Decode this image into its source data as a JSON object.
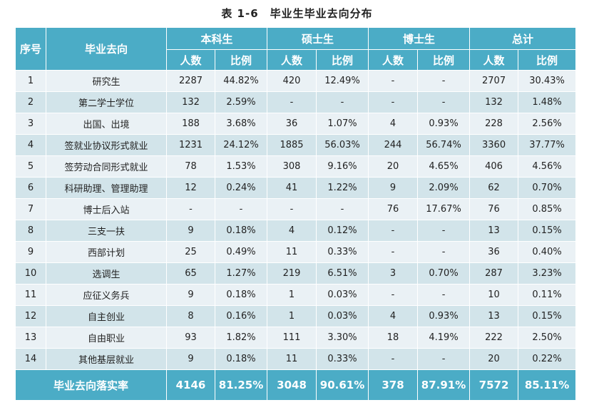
{
  "title": "表 1-6　毕业生毕业去向分布",
  "headers": {
    "index": "序号",
    "destination": "毕业去向",
    "groups": [
      "本科生",
      "硕士生",
      "博士生",
      "总计"
    ],
    "count": "人数",
    "ratio": "比例"
  },
  "rows": [
    [
      "1",
      "研究生",
      "2287",
      "44.82%",
      "420",
      "12.49%",
      "-",
      "-",
      "2707",
      "30.43%"
    ],
    [
      "2",
      "第二学士学位",
      "132",
      "2.59%",
      "-",
      "-",
      "-",
      "-",
      "132",
      "1.48%"
    ],
    [
      "3",
      "出国、出境",
      "188",
      "3.68%",
      "36",
      "1.07%",
      "4",
      "0.93%",
      "228",
      "2.56%"
    ],
    [
      "4",
      "签就业协议形式就业",
      "1231",
      "24.12%",
      "1885",
      "56.03%",
      "244",
      "56.74%",
      "3360",
      "37.77%"
    ],
    [
      "5",
      "签劳动合同形式就业",
      "78",
      "1.53%",
      "308",
      "9.16%",
      "20",
      "4.65%",
      "406",
      "4.56%"
    ],
    [
      "6",
      "科研助理、管理助理",
      "12",
      "0.24%",
      "41",
      "1.22%",
      "9",
      "2.09%",
      "62",
      "0.70%"
    ],
    [
      "7",
      "博士后入站",
      "-",
      "-",
      "-",
      "-",
      "76",
      "17.67%",
      "76",
      "0.85%"
    ],
    [
      "8",
      "三支一扶",
      "9",
      "0.18%",
      "4",
      "0.12%",
      "-",
      "-",
      "13",
      "0.15%"
    ],
    [
      "9",
      "西部计划",
      "25",
      "0.49%",
      "11",
      "0.33%",
      "-",
      "-",
      "36",
      "0.40%"
    ],
    [
      "10",
      "选调生",
      "65",
      "1.27%",
      "219",
      "6.51%",
      "3",
      "0.70%",
      "287",
      "3.23%"
    ],
    [
      "11",
      "应征义务兵",
      "9",
      "0.18%",
      "1",
      "0.03%",
      "-",
      "-",
      "10",
      "0.11%"
    ],
    [
      "12",
      "自主创业",
      "8",
      "0.16%",
      "1",
      "0.03%",
      "4",
      "0.93%",
      "13",
      "0.15%"
    ],
    [
      "13",
      "自由职业",
      "93",
      "1.82%",
      "111",
      "3.30%",
      "18",
      "4.19%",
      "222",
      "2.50%"
    ],
    [
      "14",
      "其他基层就业",
      "9",
      "0.18%",
      "11",
      "0.33%",
      "-",
      "-",
      "20",
      "0.22%"
    ]
  ],
  "footer": [
    "毕业去向落实率",
    "4146",
    "81.25%",
    "3048",
    "90.61%",
    "378",
    "87.91%",
    "7572",
    "85.11%"
  ],
  "colors": {
    "header": "#4bacc6",
    "row_light": "#eaf1f5",
    "row_dark": "#d2e4ea"
  }
}
